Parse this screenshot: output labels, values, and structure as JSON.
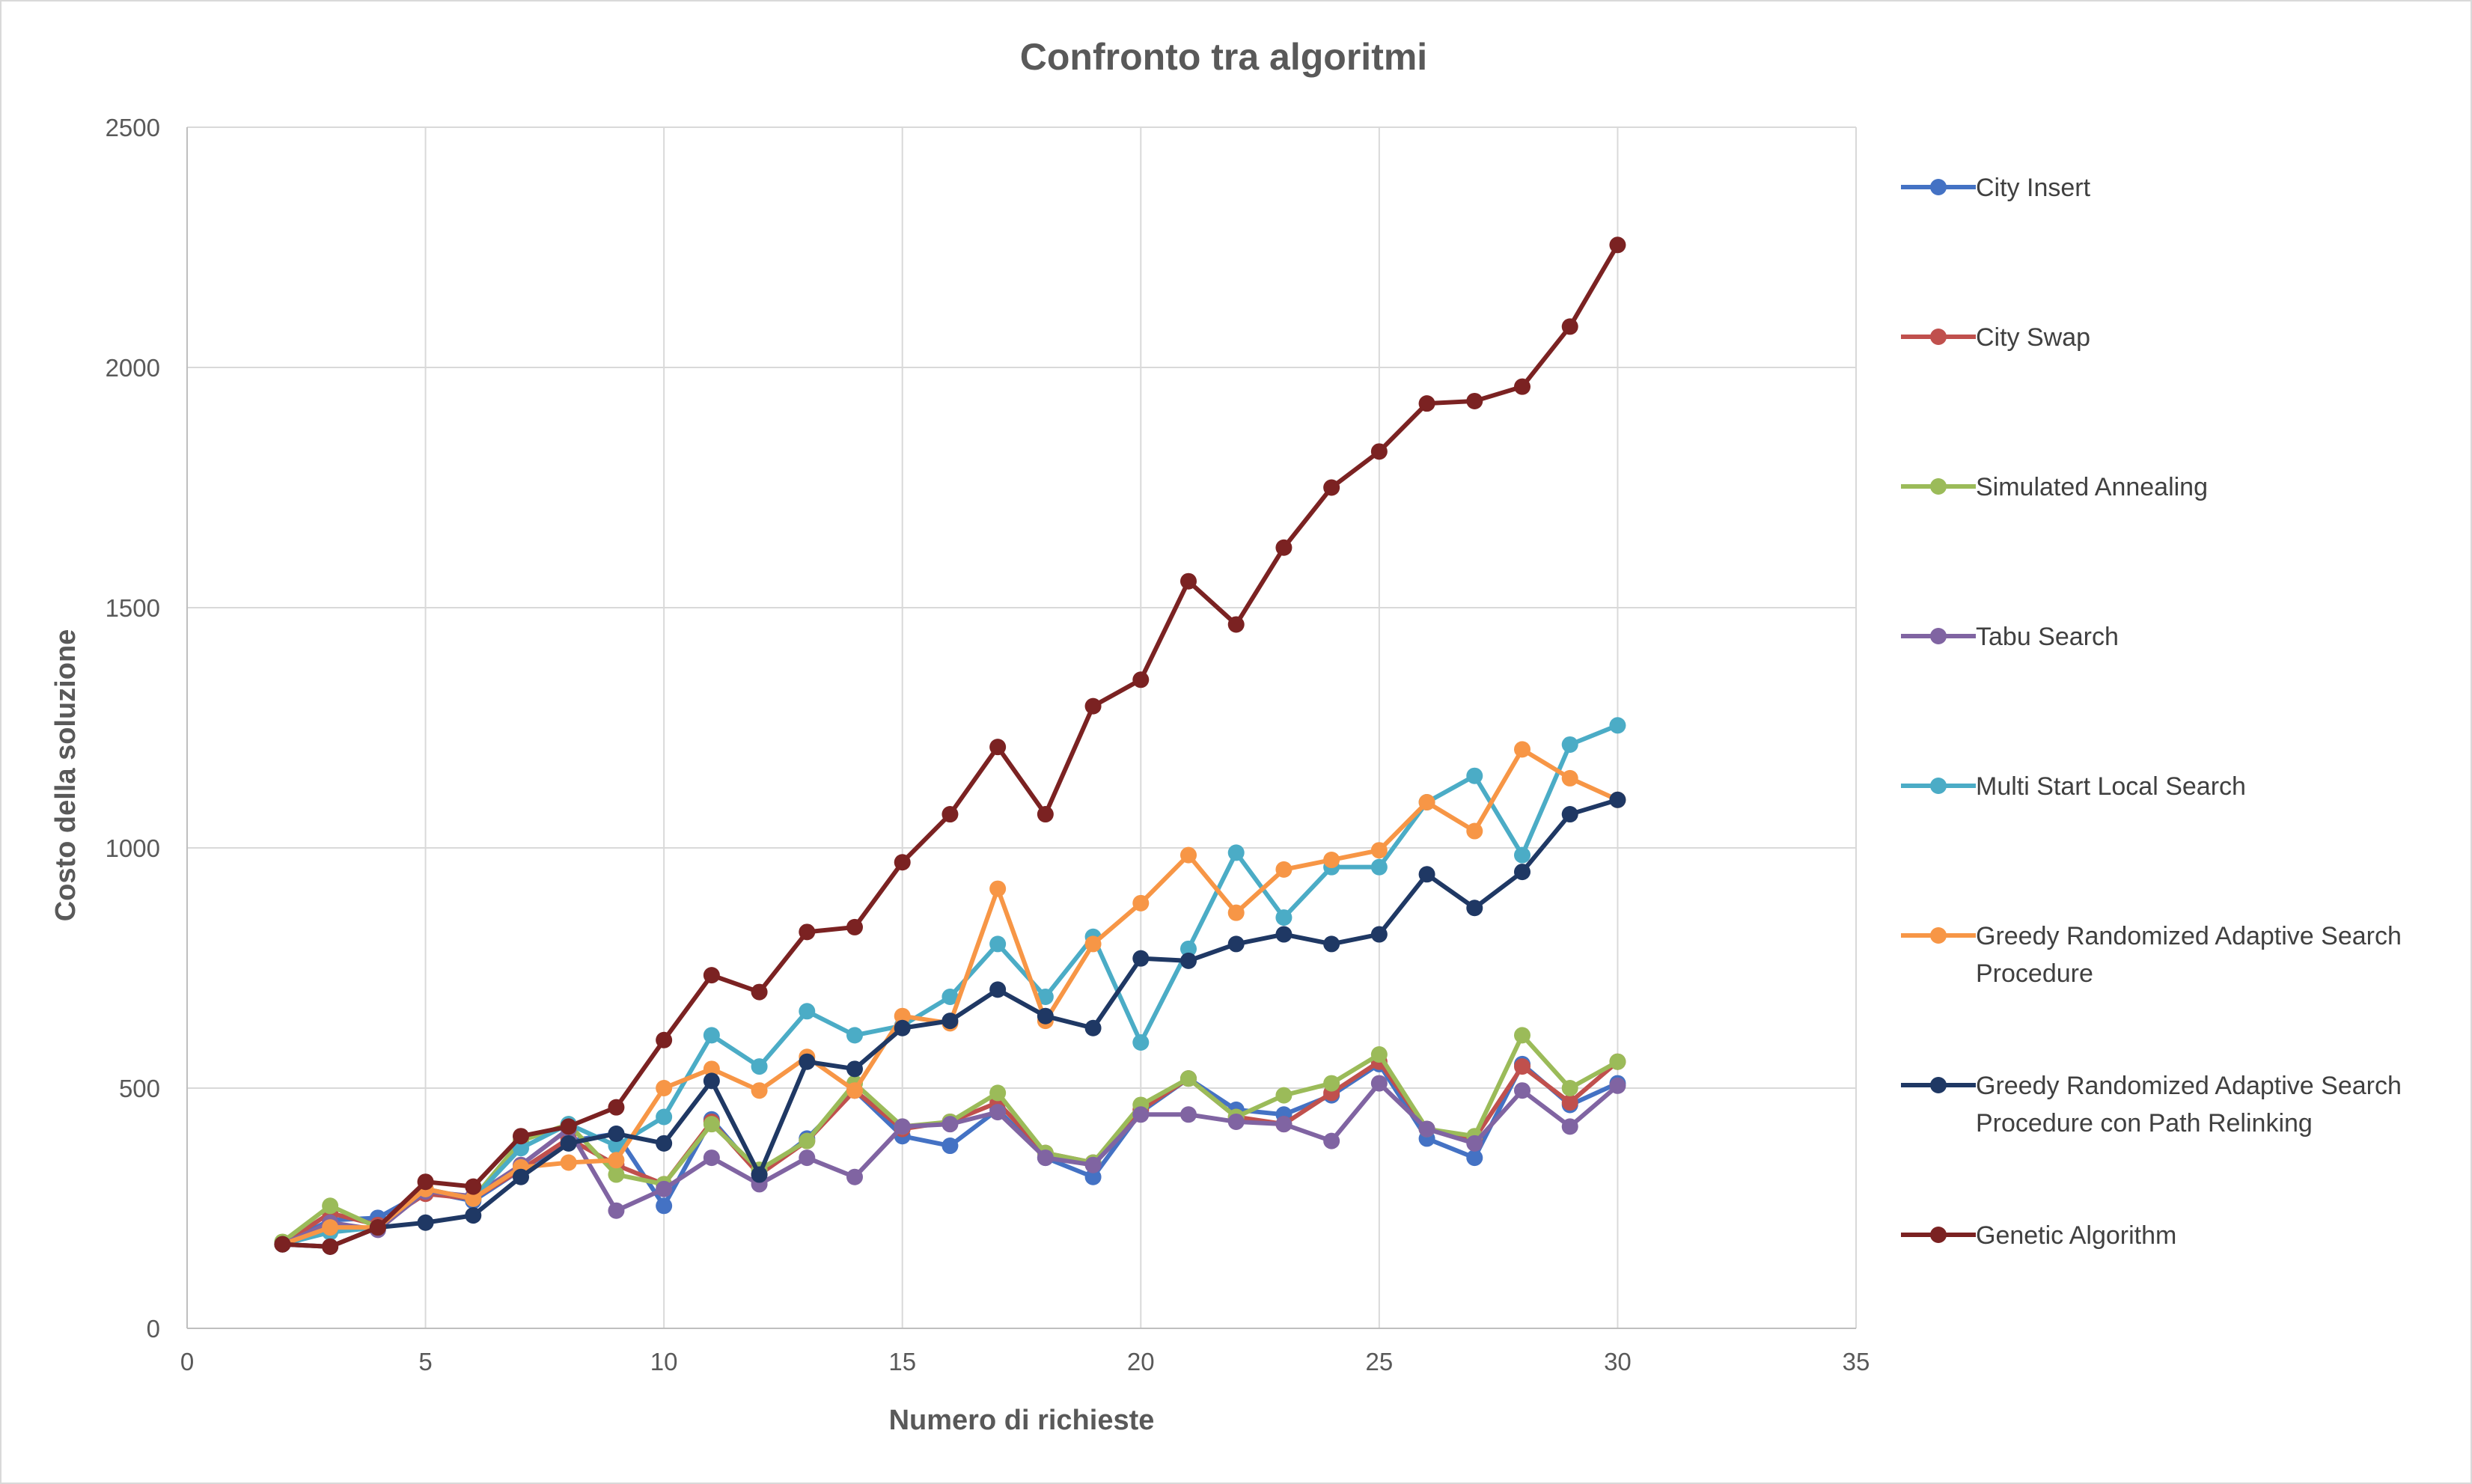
{
  "chart_data": {
    "type": "line",
    "title": "Confronto tra algoritmi",
    "xlabel": "Numero di richieste",
    "ylabel": "Costo della soluzione",
    "xlim": [
      0,
      35
    ],
    "ylim": [
      0,
      2500
    ],
    "x_ticks": [
      "0",
      "5",
      "10",
      "15",
      "20",
      "25",
      "30",
      "35"
    ],
    "y_ticks": [
      "0",
      "500",
      "1000",
      "1500",
      "2000",
      "2500"
    ],
    "grid": true,
    "legend_position": "right",
    "x": [
      2,
      3,
      4,
      5,
      6,
      7,
      8,
      9,
      10,
      11,
      12,
      13,
      14,
      15,
      16,
      17,
      18,
      19,
      20,
      21,
      22,
      23,
      24,
      25,
      26,
      27,
      28,
      29,
      30
    ],
    "series": [
      {
        "name": "City Insert",
        "color": "#4472C4",
        "values": [
          175,
          225,
          230,
          285,
          265,
          330,
          390,
          405,
          255,
          435,
          320,
          395,
          495,
          400,
          380,
          455,
          355,
          315,
          450,
          520,
          455,
          445,
          485,
          550,
          395,
          355,
          550,
          465,
          510
        ]
      },
      {
        "name": "City Swap",
        "color": "#C0504D",
        "values": [
          175,
          240,
          215,
          280,
          270,
          330,
          395,
          340,
          300,
          430,
          320,
          390,
          495,
          415,
          430,
          470,
          365,
          345,
          455,
          520,
          440,
          425,
          490,
          555,
          415,
          395,
          545,
          470,
          555
        ]
      },
      {
        "name": "Simulated Annealing",
        "color": "#9BBB59",
        "values": [
          180,
          255,
          210,
          290,
          270,
          390,
          425,
          320,
          300,
          425,
          330,
          390,
          510,
          420,
          430,
          490,
          365,
          345,
          465,
          520,
          440,
          485,
          510,
          570,
          415,
          400,
          610,
          500,
          555
        ]
      },
      {
        "name": "Tabu Search",
        "color": "#8064A2",
        "values": [
          175,
          220,
          205,
          285,
          275,
          340,
          415,
          245,
          290,
          355,
          300,
          355,
          315,
          420,
          425,
          450,
          355,
          340,
          445,
          445,
          430,
          425,
          390,
          510,
          415,
          385,
          495,
          420,
          505
        ]
      },
      {
        "name": "Multi Start Local Search",
        "color": "#4BACC6",
        "values": [
          175,
          200,
          210,
          290,
          270,
          375,
          425,
          380,
          440,
          610,
          545,
          660,
          610,
          630,
          690,
          800,
          690,
          815,
          595,
          790,
          990,
          855,
          960,
          960,
          1095,
          1150,
          985,
          1215,
          1255
        ]
      },
      {
        "name": "Greedy Randomized Adaptive Search Procedure",
        "color": "#F79646",
        "values": [
          175,
          210,
          210,
          290,
          270,
          335,
          345,
          350,
          500,
          540,
          495,
          565,
          495,
          650,
          635,
          915,
          640,
          800,
          885,
          985,
          865,
          955,
          975,
          995,
          1095,
          1035,
          1205,
          1145,
          1100
        ]
      },
      {
        "name": "Greedy Randomized Adaptive Search Procedure con Path Relinking",
        "color": "#1F3864",
        "values": [
          175,
          170,
          210,
          220,
          235,
          315,
          385,
          405,
          385,
          515,
          320,
          555,
          540,
          625,
          640,
          705,
          650,
          625,
          770,
          765,
          800,
          820,
          800,
          820,
          945,
          875,
          950,
          1070,
          1100
        ]
      },
      {
        "name": "Genetic Algorithm",
        "color": "#7B2222",
        "values": [
          175,
          170,
          210,
          305,
          295,
          400,
          420,
          460,
          600,
          735,
          700,
          825,
          835,
          970,
          1070,
          1210,
          1070,
          1295,
          1350,
          1555,
          1465,
          1625,
          1750,
          1825,
          1925,
          1930,
          1960,
          2085,
          2255
        ]
      }
    ]
  }
}
